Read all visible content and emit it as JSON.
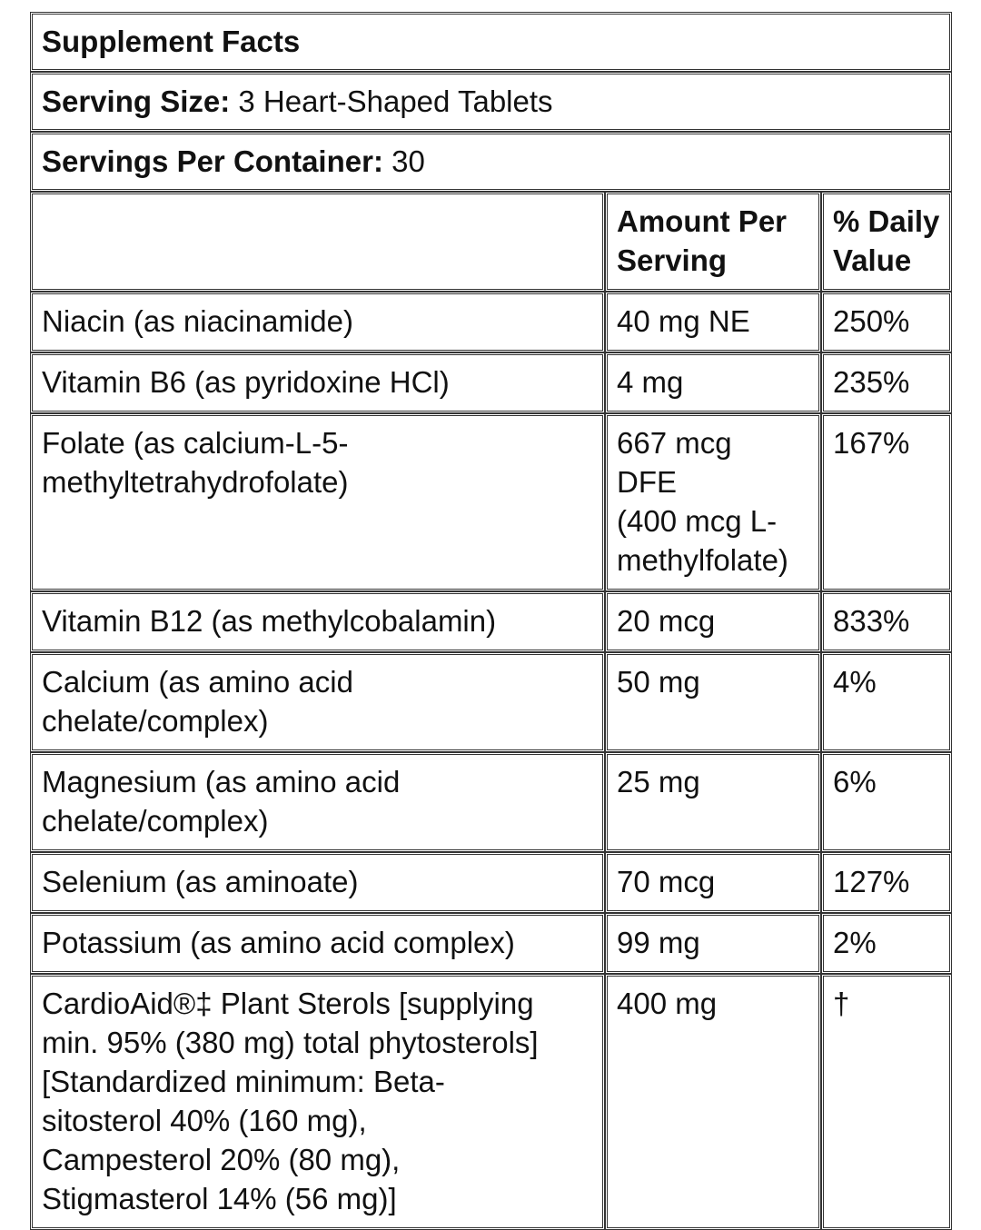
{
  "title": "Supplement Facts",
  "serving_size": {
    "label": "Serving Size:",
    "value": "3 Heart-Shaped Tablets"
  },
  "servings_per_container": {
    "label": "Servings Per Container:",
    "value": "30"
  },
  "columns": {
    "amount": [
      "Amount Per",
      "Serving"
    ],
    "dv": [
      "% Daily",
      "Value"
    ]
  },
  "rows": [
    {
      "name": [
        "Niacin (as niacinamide)"
      ],
      "amount": [
        "40 mg NE"
      ],
      "dv": "250%"
    },
    {
      "name": [
        "Vitamin B6 (as pyridoxine HCl)"
      ],
      "amount": [
        "4 mg"
      ],
      "dv": "235%"
    },
    {
      "name": [
        "Folate (as calcium-L-5-",
        "methyltetrahydrofolate)"
      ],
      "amount": [
        "667 mcg",
        "DFE",
        "(400 mcg L-",
        "methylfolate)"
      ],
      "dv": "167%"
    },
    {
      "name": [
        "Vitamin B12 (as methylcobalamin)"
      ],
      "amount": [
        "20 mcg"
      ],
      "dv": "833%"
    },
    {
      "name": [
        "Calcium (as amino acid",
        "chelate/complex)"
      ],
      "amount": [
        "50 mg"
      ],
      "dv": "4%"
    },
    {
      "name": [
        "Magnesium (as amino acid",
        "chelate/complex)"
      ],
      "amount": [
        "25 mg"
      ],
      "dv": "6%"
    },
    {
      "name": [
        "Selenium (as aminoate)"
      ],
      "amount": [
        "70 mcg"
      ],
      "dv": "127%"
    },
    {
      "name": [
        "Potassium (as amino acid complex)"
      ],
      "amount": [
        "99 mg"
      ],
      "dv": "2%"
    },
    {
      "name": [
        "CardioAid®‡ Plant Sterols [supplying",
        "min. 95% (380 mg) total phytosterols]",
        "[Standardized minimum: Beta-",
        "sitosterol 40% (160 mg),",
        "Campesterol 20% (80 mg),",
        "Stigmasterol 14% (56 mg)]"
      ],
      "amount": [
        "400 mg"
      ],
      "dv": "†"
    }
  ]
}
